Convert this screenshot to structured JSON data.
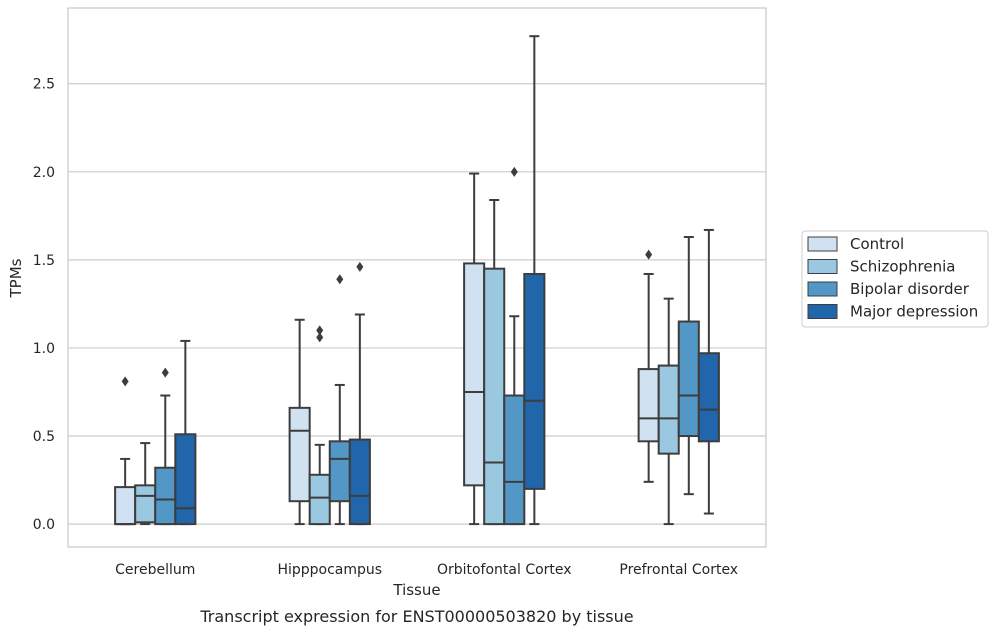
{
  "chart_data": {
    "type": "box",
    "xlabel": "Tissue",
    "ylabel": "TPMs",
    "caption": "Transcript expression for ENST00000503820 by tissue",
    "ylim": [
      -0.13,
      2.93
    ],
    "yticks": [
      "0.0",
      "0.5",
      "1.0",
      "1.5",
      "2.0",
      "2.5"
    ],
    "grid": "horizontal",
    "legend_position": "right",
    "categories": [
      "Cerebellum",
      "Hipppocampus",
      "Orbitofontal Cortex",
      "Prefrontal Cortex"
    ],
    "series": [
      {
        "name": "Control",
        "color": "#d0e1f2",
        "boxes": [
          {
            "whisker_low": 0.0,
            "q1": 0.0,
            "median": 0.0,
            "q3": 0.21,
            "whisker_high": 0.37,
            "outliers": [
              0.81
            ]
          },
          {
            "whisker_low": 0.0,
            "q1": 0.13,
            "median": 0.53,
            "q3": 0.66,
            "whisker_high": 1.16,
            "outliers": []
          },
          {
            "whisker_low": 0.0,
            "q1": 0.22,
            "median": 0.75,
            "q3": 1.48,
            "whisker_high": 1.99,
            "outliers": []
          },
          {
            "whisker_low": 0.24,
            "q1": 0.47,
            "median": 0.6,
            "q3": 0.88,
            "whisker_high": 1.42,
            "outliers": [
              1.53
            ]
          }
        ]
      },
      {
        "name": "Schizophrenia",
        "color": "#9ac8e0",
        "boxes": [
          {
            "whisker_low": 0.0,
            "q1": 0.01,
            "median": 0.16,
            "q3": 0.22,
            "whisker_high": 0.46,
            "outliers": []
          },
          {
            "whisker_low": 0.0,
            "q1": 0.0,
            "median": 0.15,
            "q3": 0.28,
            "whisker_high": 0.45,
            "outliers": [
              1.06,
              1.1
            ]
          },
          {
            "whisker_low": 0.0,
            "q1": 0.0,
            "median": 0.35,
            "q3": 1.45,
            "whisker_high": 1.84,
            "outliers": []
          },
          {
            "whisker_low": 0.0,
            "q1": 0.4,
            "median": 0.6,
            "q3": 0.9,
            "whisker_high": 1.28,
            "outliers": []
          }
        ]
      },
      {
        "name": "Bipolar disorder",
        "color": "#5297c6",
        "boxes": [
          {
            "whisker_low": 0.0,
            "q1": 0.0,
            "median": 0.14,
            "q3": 0.32,
            "whisker_high": 0.73,
            "outliers": [
              0.86
            ]
          },
          {
            "whisker_low": 0.0,
            "q1": 0.13,
            "median": 0.37,
            "q3": 0.47,
            "whisker_high": 0.79,
            "outliers": [
              1.39
            ]
          },
          {
            "whisker_low": 0.0,
            "q1": 0.0,
            "median": 0.24,
            "q3": 0.73,
            "whisker_high": 1.18,
            "outliers": [
              2.0
            ]
          },
          {
            "whisker_low": 0.17,
            "q1": 0.5,
            "median": 0.73,
            "q3": 1.15,
            "whisker_high": 1.63,
            "outliers": []
          }
        ]
      },
      {
        "name": "Major depression",
        "color": "#2165ab",
        "boxes": [
          {
            "whisker_low": 0.0,
            "q1": 0.0,
            "median": 0.09,
            "q3": 0.51,
            "whisker_high": 1.04,
            "outliers": []
          },
          {
            "whisker_low": 0.0,
            "q1": 0.0,
            "median": 0.16,
            "q3": 0.48,
            "whisker_high": 1.19,
            "outliers": [
              1.46
            ]
          },
          {
            "whisker_low": 0.0,
            "q1": 0.2,
            "median": 0.7,
            "q3": 1.42,
            "whisker_high": 2.77,
            "outliers": []
          },
          {
            "whisker_low": 0.06,
            "q1": 0.47,
            "median": 0.65,
            "q3": 0.97,
            "whisker_high": 1.67,
            "outliers": []
          }
        ]
      }
    ],
    "styles": {
      "line_color": "#3d3d3d",
      "grid_color": "#cccccc",
      "frame_color": "#cccccc"
    }
  }
}
